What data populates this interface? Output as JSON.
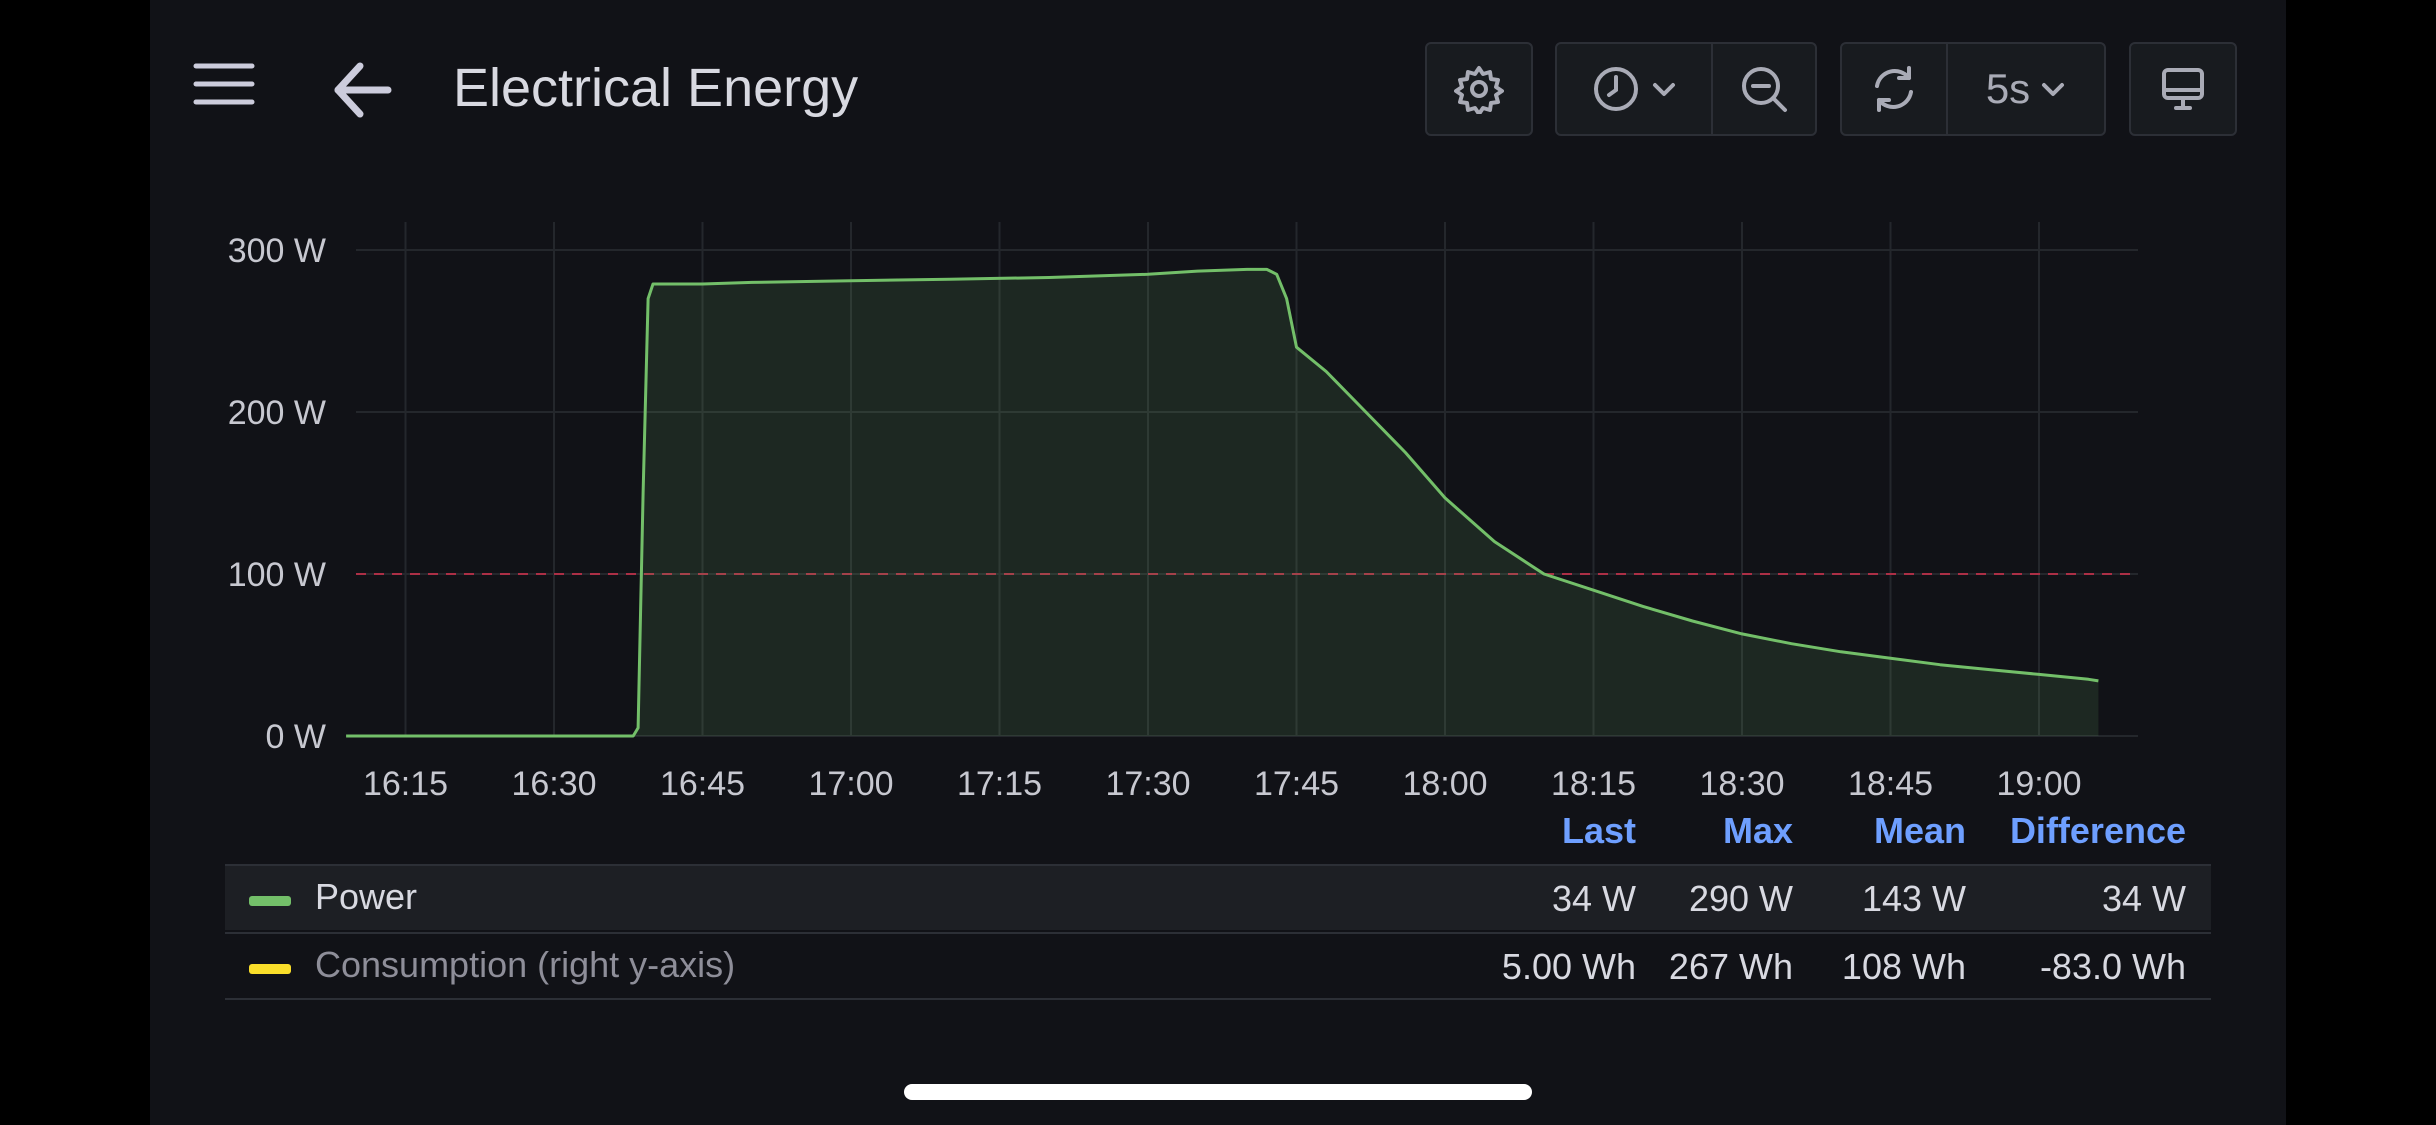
{
  "header": {
    "title": "Electrical Energy",
    "menu_icon": "hamburger-menu-icon",
    "back_icon": "arrow-left-icon"
  },
  "toolbar": {
    "settings_icon": "gear-icon",
    "time_picker_icon": "clock-icon",
    "zoom_out_icon": "zoom-out-icon",
    "refresh_icon": "refresh-icon",
    "refresh_interval": "5s",
    "tv_mode_icon": "monitor-icon"
  },
  "chart_data": {
    "type": "area",
    "title": "",
    "xlabel": "",
    "ylabel": "",
    "ylim": [
      0,
      300
    ],
    "xlim": [
      "16:10",
      "19:10"
    ],
    "y_ticks": [
      "0 W",
      "100 W",
      "200 W",
      "300 W"
    ],
    "x_ticks": [
      "16:15",
      "16:30",
      "16:45",
      "17:00",
      "17:15",
      "17:30",
      "17:45",
      "18:00",
      "18:15",
      "18:30",
      "18:45",
      "19:00"
    ],
    "threshold": {
      "value": 100,
      "style": "dashed",
      "color": "#c4314b"
    },
    "grid": true,
    "series": [
      {
        "name": "Power",
        "color": "#73bf69",
        "x": [
          "16:09",
          "16:20",
          "16:30",
          "16:38",
          "16:38:30",
          "16:39",
          "16:39:30",
          "16:40",
          "16:45",
          "16:50",
          "17:00",
          "17:10",
          "17:20",
          "17:30",
          "17:35",
          "17:40",
          "17:42",
          "17:43",
          "17:44",
          "17:45",
          "17:48",
          "17:52",
          "17:56",
          "18:00",
          "18:05",
          "18:10",
          "18:15",
          "18:20",
          "18:25",
          "18:30",
          "18:35",
          "18:40",
          "18:45",
          "18:50",
          "18:55",
          "19:00",
          "19:05",
          "19:06"
        ],
        "y": [
          0,
          0,
          0,
          0,
          5,
          150,
          270,
          279,
          279,
          280,
          281,
          282,
          283,
          285,
          287,
          288,
          288,
          285,
          270,
          240,
          225,
          200,
          175,
          147,
          120,
          100,
          90,
          80,
          71,
          63,
          57,
          52,
          48,
          44,
          41,
          38,
          35,
          34
        ]
      }
    ],
    "legend": {
      "placement": "bottom",
      "columns": [
        "Last",
        "Max",
        "Mean",
        "Difference"
      ],
      "rows": [
        {
          "name": "Power",
          "color": "#73bf69",
          "values": [
            "34 W",
            "290 W",
            "143 W",
            "34 W"
          ]
        },
        {
          "name": "Consumption (right y-axis)",
          "color": "#fade2a",
          "values": [
            "5.00 Wh",
            "267 Wh",
            "108 Wh",
            "-83.0 Wh"
          ]
        }
      ]
    }
  }
}
